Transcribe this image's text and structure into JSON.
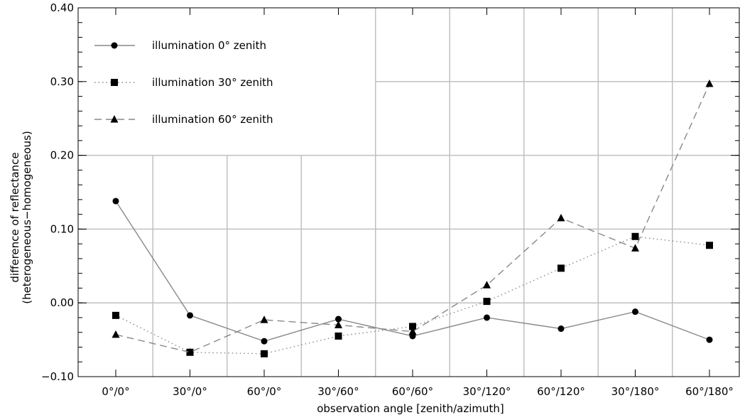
{
  "chart_data": {
    "type": "line",
    "xlabel": "observation angle [zenith/azimuth]",
    "ylabel_lines": [
      "difference of reflectance",
      "(heterogeneous−homogeneous)"
    ],
    "categories": [
      "0°/0°",
      "30°/0°",
      "60°/0°",
      "30°/60°",
      "60°/60°",
      "30°/120°",
      "60°/120°",
      "30°/180°",
      "60°/180°"
    ],
    "ylim": [
      -0.1,
      0.4
    ],
    "yticks": [
      -0.1,
      0.0,
      0.1,
      0.2,
      0.3,
      0.4
    ],
    "ytick_labels": [
      "−0.10",
      "0.00",
      "0.10",
      "0.20",
      "0.30",
      "0.40"
    ],
    "grid": true,
    "legend_position": "top-left",
    "series": [
      {
        "name": "illumination 0° zenith",
        "marker": "circle",
        "line_style": "solid",
        "values": [
          0.138,
          -0.017,
          -0.052,
          -0.022,
          -0.045,
          -0.02,
          -0.035,
          -0.012,
          -0.05
        ]
      },
      {
        "name": "illumination 30° zenith",
        "marker": "square",
        "line_style": "dotted",
        "values": [
          -0.017,
          -0.067,
          -0.069,
          -0.045,
          -0.032,
          0.002,
          0.047,
          0.09,
          0.078
        ]
      },
      {
        "name": "illumination 60° zenith",
        "marker": "triangle",
        "line_style": "dashed",
        "values": [
          -0.043,
          -0.067,
          -0.023,
          -0.03,
          -0.039,
          0.024,
          0.115,
          0.074,
          0.297
        ]
      }
    ],
    "colors": {
      "line": "#888888",
      "marker": "#000000",
      "grid": "#c0c0c0",
      "axis": "#000000"
    }
  }
}
